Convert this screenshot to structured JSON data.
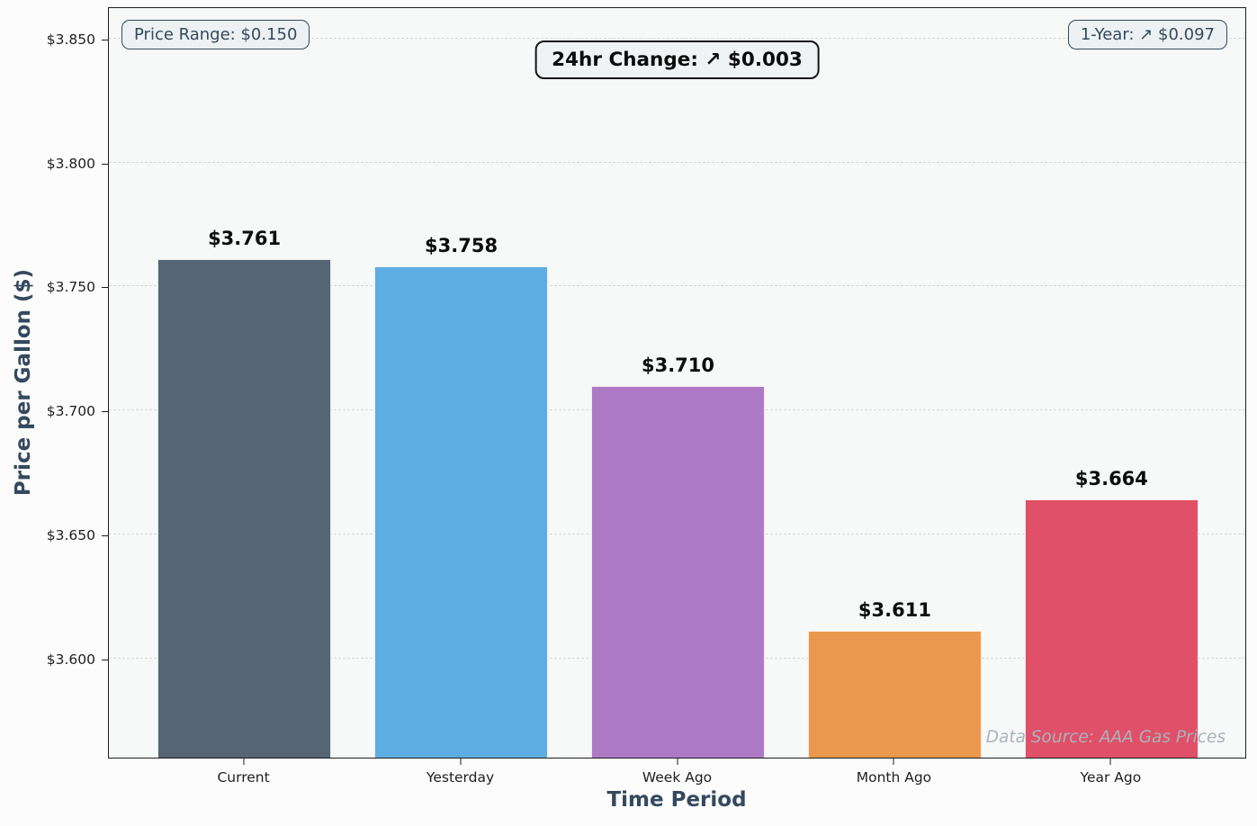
{
  "chart_data": {
    "type": "bar",
    "categories": [
      "Current",
      "Yesterday",
      "Week Ago",
      "Month Ago",
      "Year Ago"
    ],
    "values": [
      3.761,
      3.758,
      3.71,
      3.611,
      3.664
    ],
    "bar_labels": [
      "$3.761",
      "$3.758",
      "$3.710",
      "$3.611",
      "$3.664"
    ],
    "bar_colors": [
      "#566573",
      "#5DADE2",
      "#AF7AC5",
      "#EB984E",
      "#E05068"
    ],
    "xlabel": "Time Period",
    "ylabel": "Price per Gallon ($)",
    "ylim": [
      3.56,
      3.863
    ],
    "yticks": [
      3.6,
      3.65,
      3.7,
      3.75,
      3.8,
      3.85
    ],
    "ytick_labels": [
      "$3.600",
      "$3.650",
      "$3.700",
      "$3.750",
      "$3.800",
      "$3.850"
    ],
    "grid": "horizontal-dashed",
    "legend": "none",
    "annotations": [
      {
        "id": "price-range",
        "text": "Price Range: $0.150",
        "position": "top-left"
      },
      {
        "id": "change-24hr",
        "text": "24hr Change: ↗ $0.003",
        "position": "top-center"
      },
      {
        "id": "one-year",
        "text": "1-Year: ↗ $0.097",
        "position": "top-right"
      }
    ],
    "data_source": "Data Source: AAA Gas Prices"
  },
  "colors": {
    "figure_background": "#FCFCFC",
    "plot_background": "#F7F8F8",
    "axis_label": "#34495E",
    "annotation_border": "#34495E",
    "title_border": "#161616",
    "grid": "#D7D9DB",
    "data_source_text": "#A9B3BC",
    "tick_text": "#1f1f1f"
  }
}
